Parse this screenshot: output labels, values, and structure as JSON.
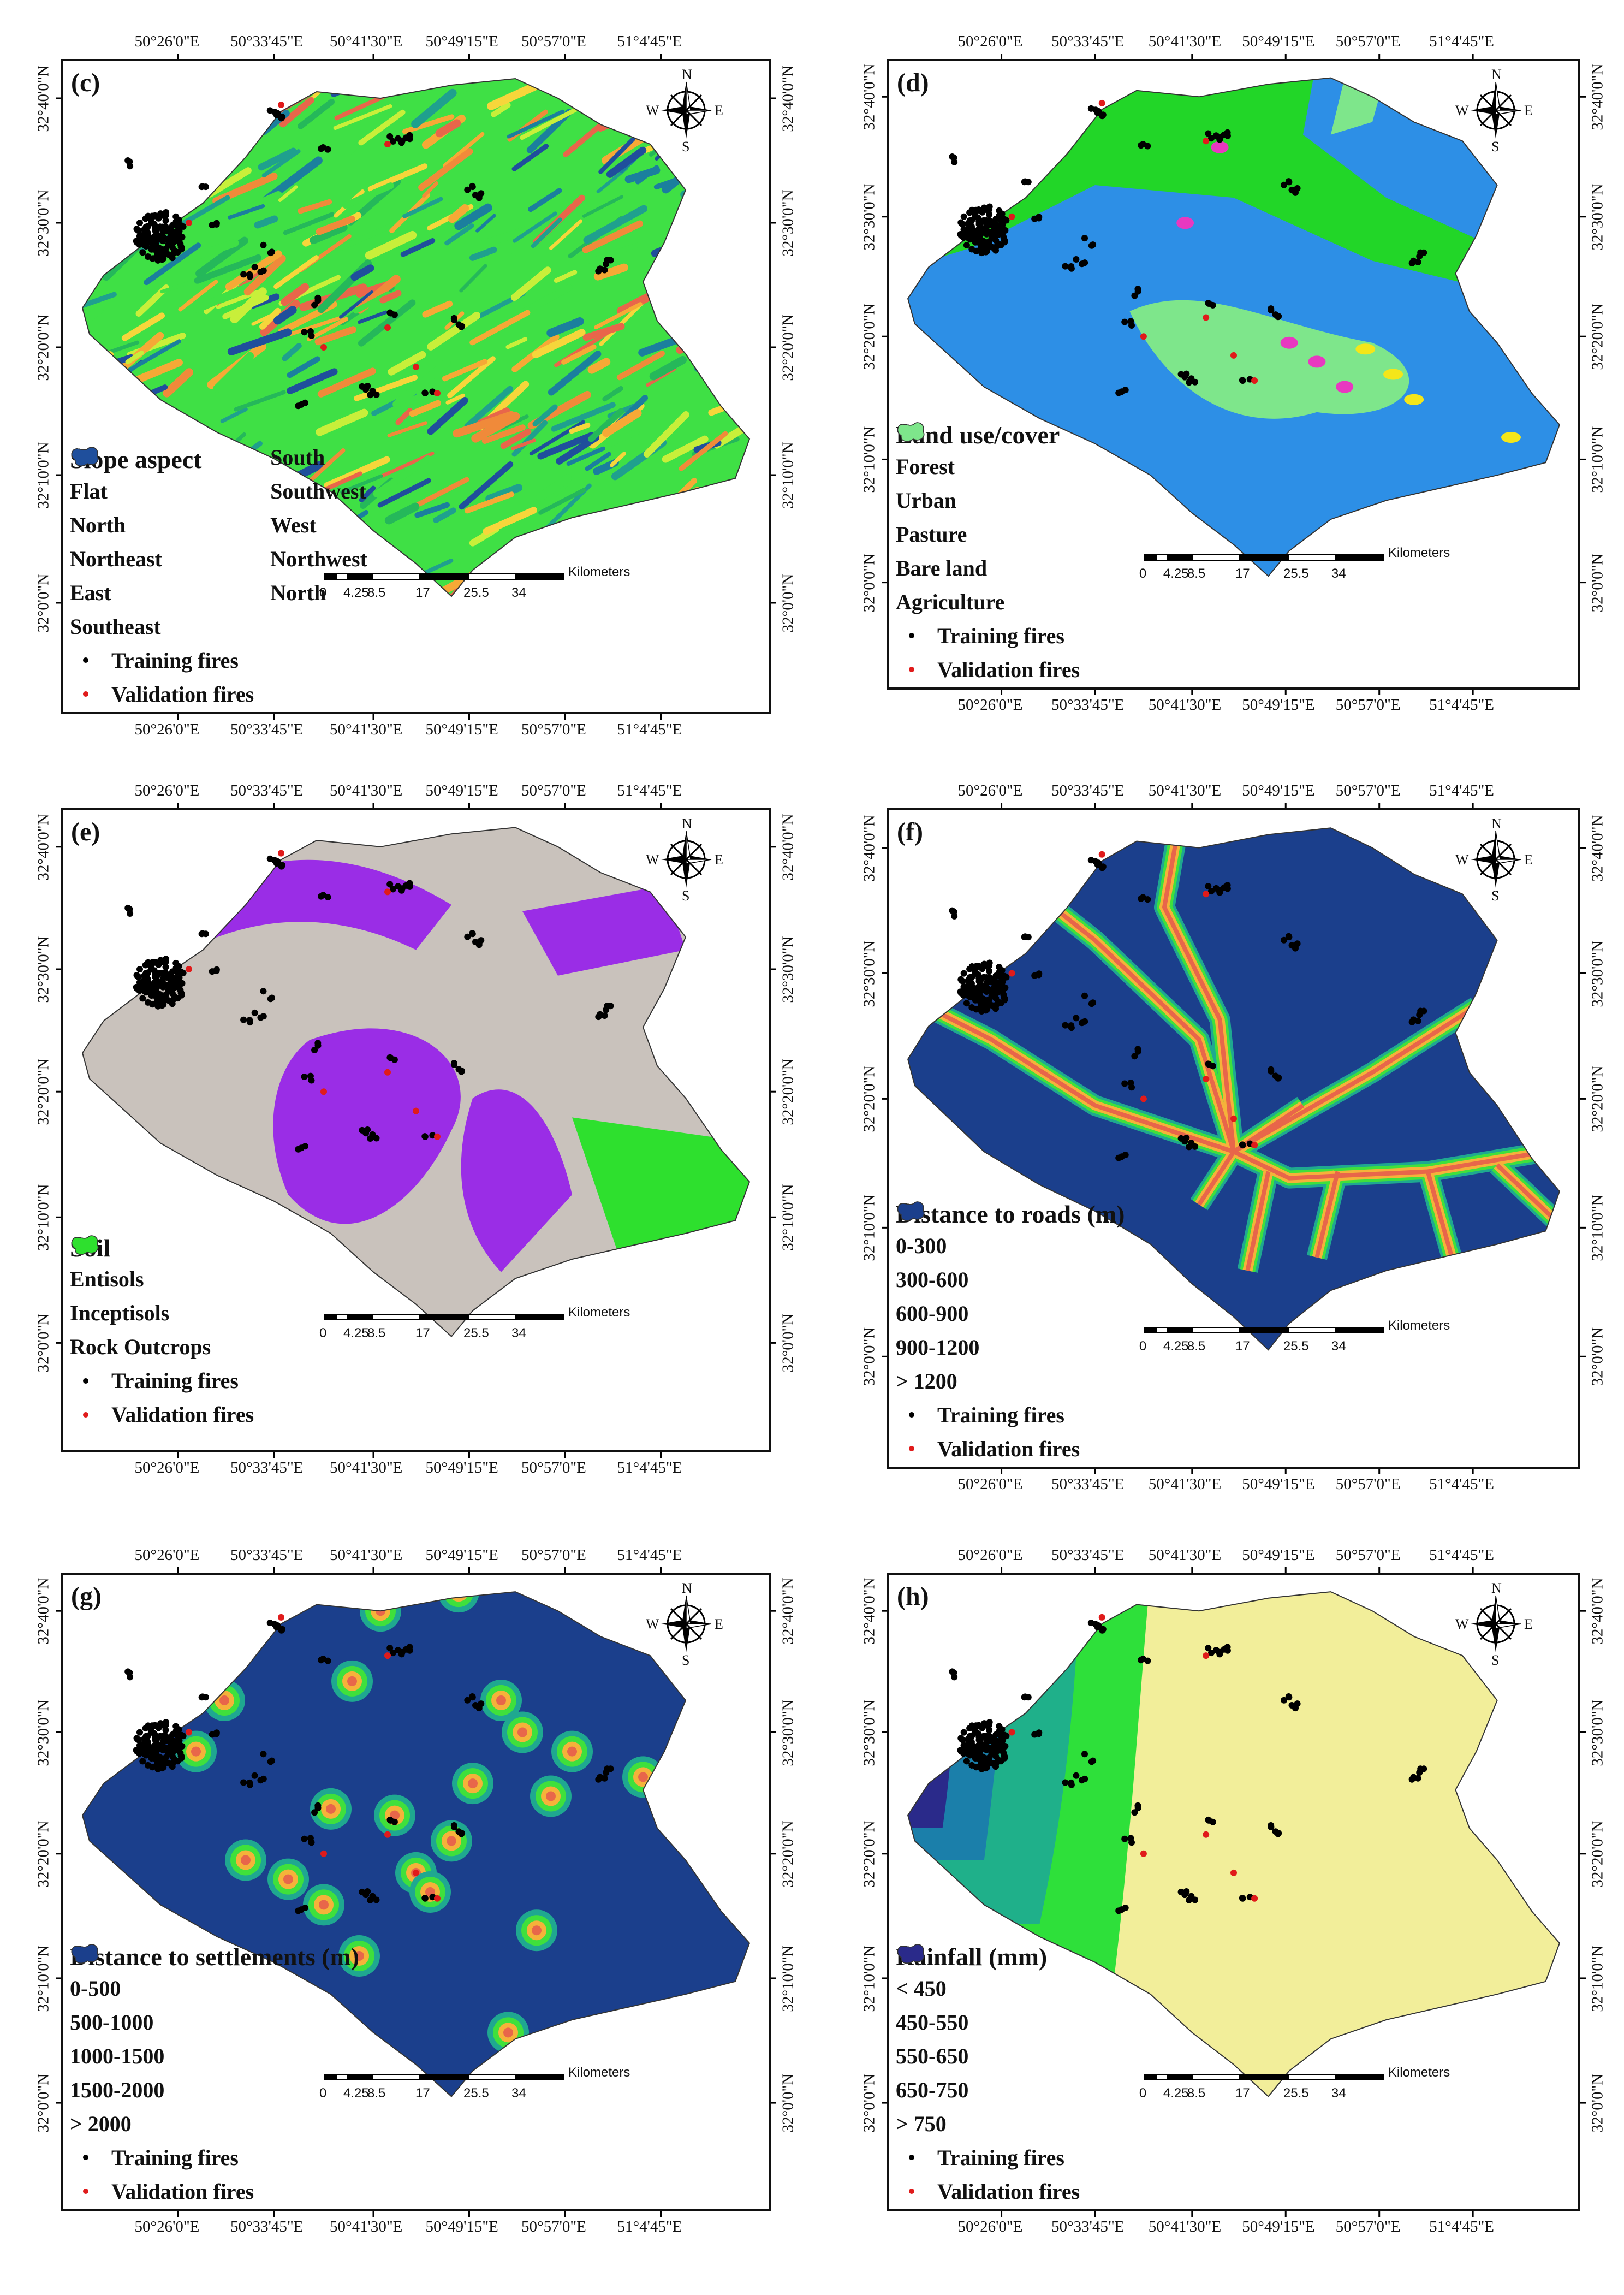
{
  "figure": {
    "lon_labels": [
      "50°26'0\"E",
      "50°33'45\"E",
      "50°41'30\"E",
      "50°49'15\"E",
      "50°57'0\"E",
      "51°4'45\"E"
    ],
    "lat_labels": [
      "32°40'0\"N",
      "32°30'0\"N",
      "32°20'0\"N",
      "32°10'0\"N",
      "32°0'0\"N"
    ],
    "compass": {
      "n": "N",
      "s": "S",
      "e": "E",
      "w": "W"
    },
    "scalebar": {
      "unit": "Kilometers",
      "ticks": [
        "0",
        "4.25",
        "8.5",
        "17",
        "25.5",
        "34"
      ]
    },
    "training_label": "Training fires",
    "validation_label": "Validation fires"
  },
  "panels": [
    {
      "id": "c",
      "label": "(c)",
      "legend_title": "Slope aspect",
      "legend_columns": 2,
      "classes": [
        {
          "label": "Flat",
          "color": "#e8664a"
        },
        {
          "label": "North",
          "color": "#f08a3a"
        },
        {
          "label": "Northeast",
          "color": "#f6a936"
        },
        {
          "label": "East",
          "color": "#f6d63b"
        },
        {
          "label": "Southeast",
          "color": "#c8ef3a"
        },
        {
          "label": "South",
          "color": "#3fe045"
        },
        {
          "label": "Southwest",
          "color": "#25b85a"
        },
        {
          "label": "West",
          "color": "#1fa08e"
        },
        {
          "label": "Northwest",
          "color": "#1b7f9e"
        },
        {
          "label": "North",
          "color": "#1f4f9c"
        }
      ],
      "training_label": "Training fires",
      "validation_label": "Validation fires"
    },
    {
      "id": "d",
      "label": "(d)",
      "legend_title": "Land use/cover",
      "legend_columns": 1,
      "classes": [
        {
          "label": "Forest",
          "color": "#22d628"
        },
        {
          "label": "Urban",
          "color": "#e838c0"
        },
        {
          "label": "Pasture",
          "color": "#2d8fe6"
        },
        {
          "label": "Bare land",
          "color": "#f4e61a"
        },
        {
          "label": "Agriculture",
          "color": "#7ee68b"
        }
      ],
      "training_label": "Training fires",
      "validation_label": "Validation fires"
    },
    {
      "id": "e",
      "label": "(e)",
      "legend_title": "Soil",
      "legend_columns": 1,
      "classes": [
        {
          "label": "Entisols",
          "color": "#c9c2bc"
        },
        {
          "label": "Inceptisols",
          "color": "#9a2de6"
        },
        {
          "label": "Rock Outcrops",
          "color": "#2ee02e"
        }
      ],
      "training_label": "Training fires",
      "validation_label": "Validation fires"
    },
    {
      "id": "f",
      "label": "(f)",
      "legend_title": "Distance to roads (m)",
      "legend_columns": 1,
      "classes": [
        {
          "label": "0-300",
          "color": "#e8664a"
        },
        {
          "label": "300-600",
          "color": "#f5b23a"
        },
        {
          "label": "600-900",
          "color": "#3fe03c"
        },
        {
          "label": "900-1200",
          "color": "#1fa890"
        },
        {
          "label": "> 1200",
          "color": "#1b3f8c"
        }
      ],
      "training_label": "Training fires",
      "validation_label": "Validation fires"
    },
    {
      "id": "g",
      "label": "(g)",
      "legend_title": "Distance to settlements (m)",
      "legend_columns": 1,
      "classes": [
        {
          "label": "0-500",
          "color": "#e8664a"
        },
        {
          "label": "500-1000",
          "color": "#f5b23a"
        },
        {
          "label": "1000-1500",
          "color": "#3fe03c"
        },
        {
          "label": "1500-2000",
          "color": "#1fa890"
        },
        {
          "label": "> 2000",
          "color": "#1b3f8c"
        }
      ],
      "training_label": "Training fires",
      "validation_label": "Validation fires"
    },
    {
      "id": "h",
      "label": "(h)",
      "legend_title": "Rainfall (mm)",
      "legend_columns": 1,
      "classes": [
        {
          "label": "< 450",
          "color": "#f2ee9a"
        },
        {
          "label": "450-550",
          "color": "#2ee03a"
        },
        {
          "label": "550-650",
          "color": "#1fb08a"
        },
        {
          "label": "650-750",
          "color": "#1b7faa"
        },
        {
          "label": "> 750",
          "color": "#2a2a8a"
        }
      ],
      "training_label": "Training fires",
      "validation_label": "Validation fires"
    }
  ]
}
